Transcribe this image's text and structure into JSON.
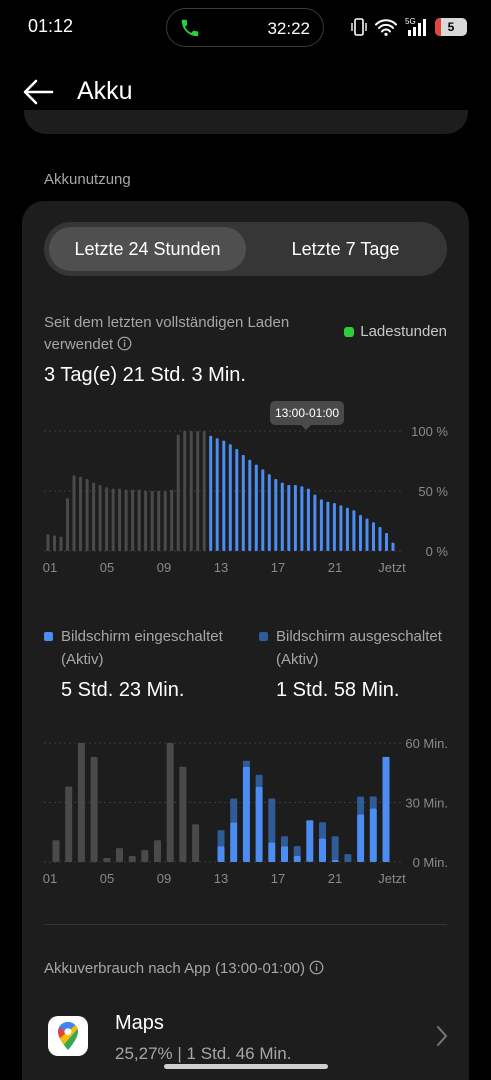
{
  "status_bar": {
    "time": "01:12",
    "call_duration": "32:22",
    "network": "5G",
    "battery": "5"
  },
  "header": {
    "title": "Akku"
  },
  "section": {
    "label": "Akkunutzung"
  },
  "tabs": [
    {
      "label": "Letzte 24 Stunden",
      "active": true
    },
    {
      "label": "Letzte 7 Tage",
      "active": false
    }
  ],
  "usage": {
    "since_label": "Seit dem letzten vollständigen Laden verwendet",
    "since_value": "3 Tag(e) 21 Std. 3 Min.",
    "legend_charging": "Ladestunden",
    "tooltip": "13:00-01:00"
  },
  "screen": {
    "on_label": "Bildschirm eingeschaltet (Aktiv)",
    "on_value": "5 Std. 23 Min.",
    "off_label": "Bildschirm ausgeschaltet (Aktiv)",
    "off_value": "1 Std. 58 Min."
  },
  "app_usage": {
    "label": "Akkuverbrauch nach App (13:00-01:00)",
    "apps": [
      {
        "name": "Maps",
        "percent": "25,27%",
        "duration": "1 Std. 46 Min."
      }
    ]
  },
  "colors": {
    "blue": "#4b8df2",
    "blue_dark": "#2f5c96",
    "gray": "#4a4a4a",
    "green": "#2ecc40"
  },
  "chart_data": [
    {
      "type": "bar",
      "x_ticks": [
        "01",
        "05",
        "09",
        "13",
        "17",
        "21",
        "Jetzt"
      ],
      "y_ticks": [
        "100 %",
        "50 %",
        "0 %"
      ],
      "ylim": [
        0,
        100
      ],
      "series": [
        {
          "values": [
            14,
            13,
            12,
            44,
            63,
            62,
            60,
            57,
            55,
            53,
            52,
            52,
            51,
            51,
            51,
            50,
            50,
            50,
            50,
            51,
            97,
            100,
            100,
            100,
            100
          ]
        },
        {
          "values": [
            96,
            94,
            92,
            89,
            85,
            80,
            76,
            72,
            68,
            64,
            60,
            57,
            55,
            55,
            54,
            52,
            47,
            43,
            41,
            40,
            38,
            36,
            34,
            30,
            27,
            24,
            20,
            15,
            7
          ]
        }
      ]
    },
    {
      "type": "bar",
      "x_ticks": [
        "01",
        "05",
        "09",
        "13",
        "17",
        "21",
        "Jetzt"
      ],
      "y_ticks": [
        "60 Min.",
        "30 Min.",
        "0 Min."
      ],
      "ylim": [
        0,
        60
      ],
      "series": [
        {
          "name": "Bildschirm eingeschaltet (Aktiv)",
          "values": [
            0,
            0,
            0,
            0,
            0,
            0,
            0,
            0,
            0,
            0,
            0,
            0,
            0,
            8,
            20,
            48,
            38,
            10,
            8,
            3,
            21,
            12,
            1,
            0,
            24,
            27,
            53
          ]
        },
        {
          "name": "Bildschirm ausgeschaltet (Aktiv)",
          "values": [
            0,
            0,
            0,
            0,
            0,
            0,
            0,
            0,
            0,
            0,
            0,
            0,
            0,
            8,
            12,
            3,
            6,
            22,
            5,
            5,
            0,
            8,
            12,
            4,
            9,
            6,
            0
          ]
        },
        {
          "values": [
            11,
            38,
            60,
            53,
            2,
            7,
            3,
            6,
            11,
            60,
            48,
            19,
            0,
            0,
            0,
            0,
            0,
            0,
            0,
            0,
            0,
            0,
            0,
            0,
            0,
            0,
            0
          ]
        }
      ]
    }
  ]
}
